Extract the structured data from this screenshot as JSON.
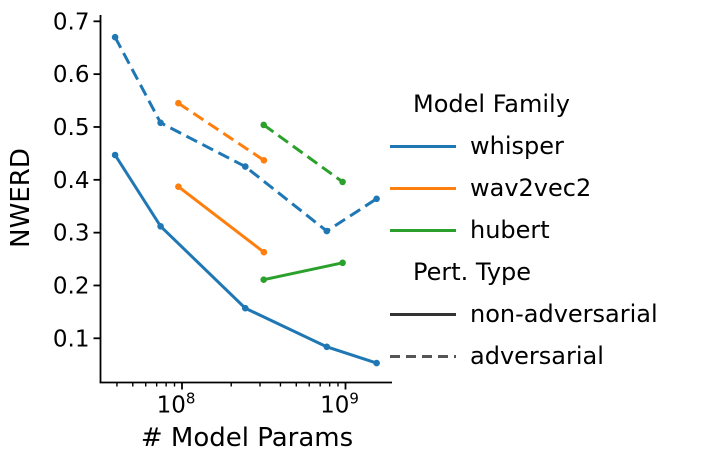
{
  "chart_data": {
    "type": "line",
    "title": "",
    "xlabel": "# Model Params",
    "ylabel": "NWERD",
    "x_scale": "log",
    "xlim": [
      32000000.0,
      1900000000.0
    ],
    "ylim": [
      0.016,
      0.712
    ],
    "grid": false,
    "legend_position": "right",
    "x_tick_labels": [
      {
        "value": 100000000.0,
        "base": "10",
        "exp": "8"
      },
      {
        "value": 1000000000.0,
        "base": "10",
        "exp": "9"
      }
    ],
    "y_ticks": [
      {
        "value": 0.1,
        "label": "0.1"
      },
      {
        "value": 0.2,
        "label": "0.2"
      },
      {
        "value": 0.3,
        "label": "0.3"
      },
      {
        "value": 0.4,
        "label": "0.4"
      },
      {
        "value": 0.5,
        "label": "0.5"
      },
      {
        "value": 0.6,
        "label": "0.6"
      },
      {
        "value": 0.7,
        "label": "0.7"
      }
    ],
    "series": [
      {
        "name": "whisper non-adversarial",
        "family": "whisper",
        "pert_type": "non-adversarial",
        "color": "#1f77b4",
        "line_style": "solid",
        "x": [
          39000000.0,
          74000000.0,
          244000000.0,
          769000000.0,
          1550000000.0
        ],
        "y": [
          0.447,
          0.312,
          0.157,
          0.084,
          0.053
        ]
      },
      {
        "name": "whisper adversarial",
        "family": "whisper",
        "pert_type": "adversarial",
        "color": "#1f77b4",
        "line_style": "dashed",
        "x": [
          39000000.0,
          74000000.0,
          244000000.0,
          769000000.0,
          1550000000.0
        ],
        "y": [
          0.67,
          0.508,
          0.425,
          0.303,
          0.364
        ]
      },
      {
        "name": "wav2vec2 non-adversarial",
        "family": "wav2vec2",
        "pert_type": "non-adversarial",
        "color": "#ff7f0e",
        "line_style": "solid",
        "x": [
          95000000.0,
          317000000.0
        ],
        "y": [
          0.387,
          0.263
        ]
      },
      {
        "name": "wav2vec2 adversarial",
        "family": "wav2vec2",
        "pert_type": "adversarial",
        "color": "#ff7f0e",
        "line_style": "dashed",
        "x": [
          95000000.0,
          317000000.0
        ],
        "y": [
          0.545,
          0.437
        ]
      },
      {
        "name": "hubert non-adversarial",
        "family": "hubert",
        "pert_type": "non-adversarial",
        "color": "#2ca02c",
        "line_style": "solid",
        "x": [
          316000000.0,
          960000000.0
        ],
        "y": [
          0.211,
          0.243
        ]
      },
      {
        "name": "hubert adversarial",
        "family": "hubert",
        "pert_type": "adversarial",
        "color": "#2ca02c",
        "line_style": "dashed",
        "x": [
          316000000.0,
          960000000.0
        ],
        "y": [
          0.504,
          0.396
        ]
      }
    ]
  },
  "legend": {
    "family_title": "Model Family",
    "family_items": [
      {
        "label": "whisper",
        "color": "#1f77b4",
        "style": "solid"
      },
      {
        "label": "wav2vec2",
        "color": "#ff7f0e",
        "style": "solid"
      },
      {
        "label": "hubert",
        "color": "#2ca02c",
        "style": "solid"
      }
    ],
    "pert_title": "Pert. Type",
    "pert_items": [
      {
        "label": "non-adversarial",
        "color": "#333333",
        "style": "solid"
      },
      {
        "label": "adversarial",
        "color": "#555555",
        "style": "dashed"
      }
    ]
  },
  "colors": {
    "axis": "#000000",
    "background": "#ffffff"
  }
}
